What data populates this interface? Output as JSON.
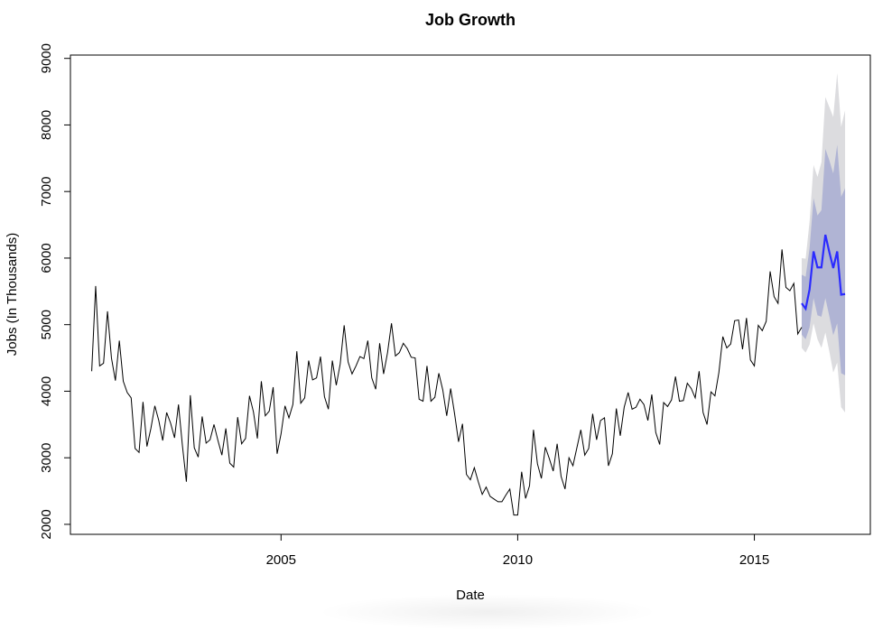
{
  "chart_data": {
    "type": "line",
    "title": "Job Growth",
    "xlabel": "Date",
    "ylabel": "Jobs (In Thousands)",
    "xlim": [
      2000.55,
      2017.45
    ],
    "ylim": [
      1850,
      9050
    ],
    "x_ticks": [
      2005,
      2010,
      2015
    ],
    "x_tick_labels": [
      "2005",
      "2010",
      "2015"
    ],
    "y_ticks": [
      2000,
      3000,
      4000,
      5000,
      6000,
      7000,
      8000,
      9000
    ],
    "y_tick_labels": [
      "2000",
      "3000",
      "4000",
      "5000",
      "6000",
      "7000",
      "8000",
      "9000"
    ],
    "grid": false,
    "colors": {
      "history": "#000000",
      "forecast": "#2b2bff",
      "band_80": "#b0b4d4",
      "band_95": "#dcdcdf"
    },
    "history": {
      "start": 2001.0,
      "step": 0.0833333,
      "values": [
        4300,
        5580,
        4380,
        4420,
        5200,
        4500,
        4160,
        4760,
        4150,
        3980,
        3900,
        3140,
        3080,
        3840,
        3170,
        3440,
        3780,
        3560,
        3260,
        3680,
        3520,
        3300,
        3800,
        3180,
        2640,
        3940,
        3150,
        3010,
        3620,
        3220,
        3270,
        3500,
        3260,
        3040,
        3440,
        2920,
        2860,
        3610,
        3210,
        3290,
        3930,
        3690,
        3290,
        4150,
        3630,
        3700,
        4060,
        3060,
        3360,
        3780,
        3600,
        3800,
        4600,
        3820,
        3900,
        4460,
        4170,
        4200,
        4520,
        3920,
        3730,
        4460,
        4090,
        4410,
        4990,
        4440,
        4260,
        4380,
        4520,
        4490,
        4760,
        4200,
        4030,
        4720,
        4260,
        4580,
        5020,
        4530,
        4580,
        4720,
        4640,
        4510,
        4500,
        3880,
        3850,
        4380,
        3850,
        3910,
        4270,
        4020,
        3630,
        4040,
        3660,
        3240,
        3510,
        2750,
        2670,
        2850,
        2640,
        2450,
        2560,
        2420,
        2380,
        2340,
        2340,
        2440,
        2530,
        2140,
        2140,
        2790,
        2390,
        2580,
        3420,
        2910,
        2690,
        3160,
        2990,
        2800,
        3210,
        2720,
        2530,
        3000,
        2880,
        3150,
        3420,
        3040,
        3140,
        3660,
        3270,
        3560,
        3600,
        2880,
        3060,
        3740,
        3330,
        3760,
        3980,
        3730,
        3760,
        3880,
        3800,
        3560,
        3950,
        3380,
        3200,
        3830,
        3770,
        3870,
        4220,
        3850,
        3860,
        4120,
        4040,
        3900,
        4300,
        3680,
        3500,
        3990,
        3930,
        4280,
        4820,
        4650,
        4710,
        5060,
        5070,
        4630,
        5100,
        4470,
        4380,
        4990,
        4910,
        5050,
        5800,
        5420,
        5320,
        6130,
        5560,
        5510,
        5620,
        4860,
        4960
      ]
    },
    "forecast": {
      "start": 2016.0,
      "step": 0.0833333,
      "values": [
        5320,
        5240,
        5530,
        6100,
        5860,
        5860,
        6350,
        6090,
        5850,
        6100,
        5450,
        5460
      ],
      "lo80": [
        4850,
        4780,
        4960,
        5400,
        5140,
        5120,
        5400,
        5130,
        4840,
        5020,
        4270,
        4240
      ],
      "hi80": [
        5750,
        5720,
        6150,
        6900,
        6640,
        6720,
        7640,
        7470,
        7270,
        7700,
        6920,
        7050
      ],
      "lo95": [
        4650,
        4580,
        4700,
        5020,
        4780,
        4650,
        4880,
        4600,
        4280,
        4430,
        3760,
        3680
      ],
      "hi95": [
        6000,
        5990,
        6550,
        7400,
        7220,
        7440,
        8420,
        8270,
        8120,
        8780,
        7970,
        8220
      ]
    }
  }
}
